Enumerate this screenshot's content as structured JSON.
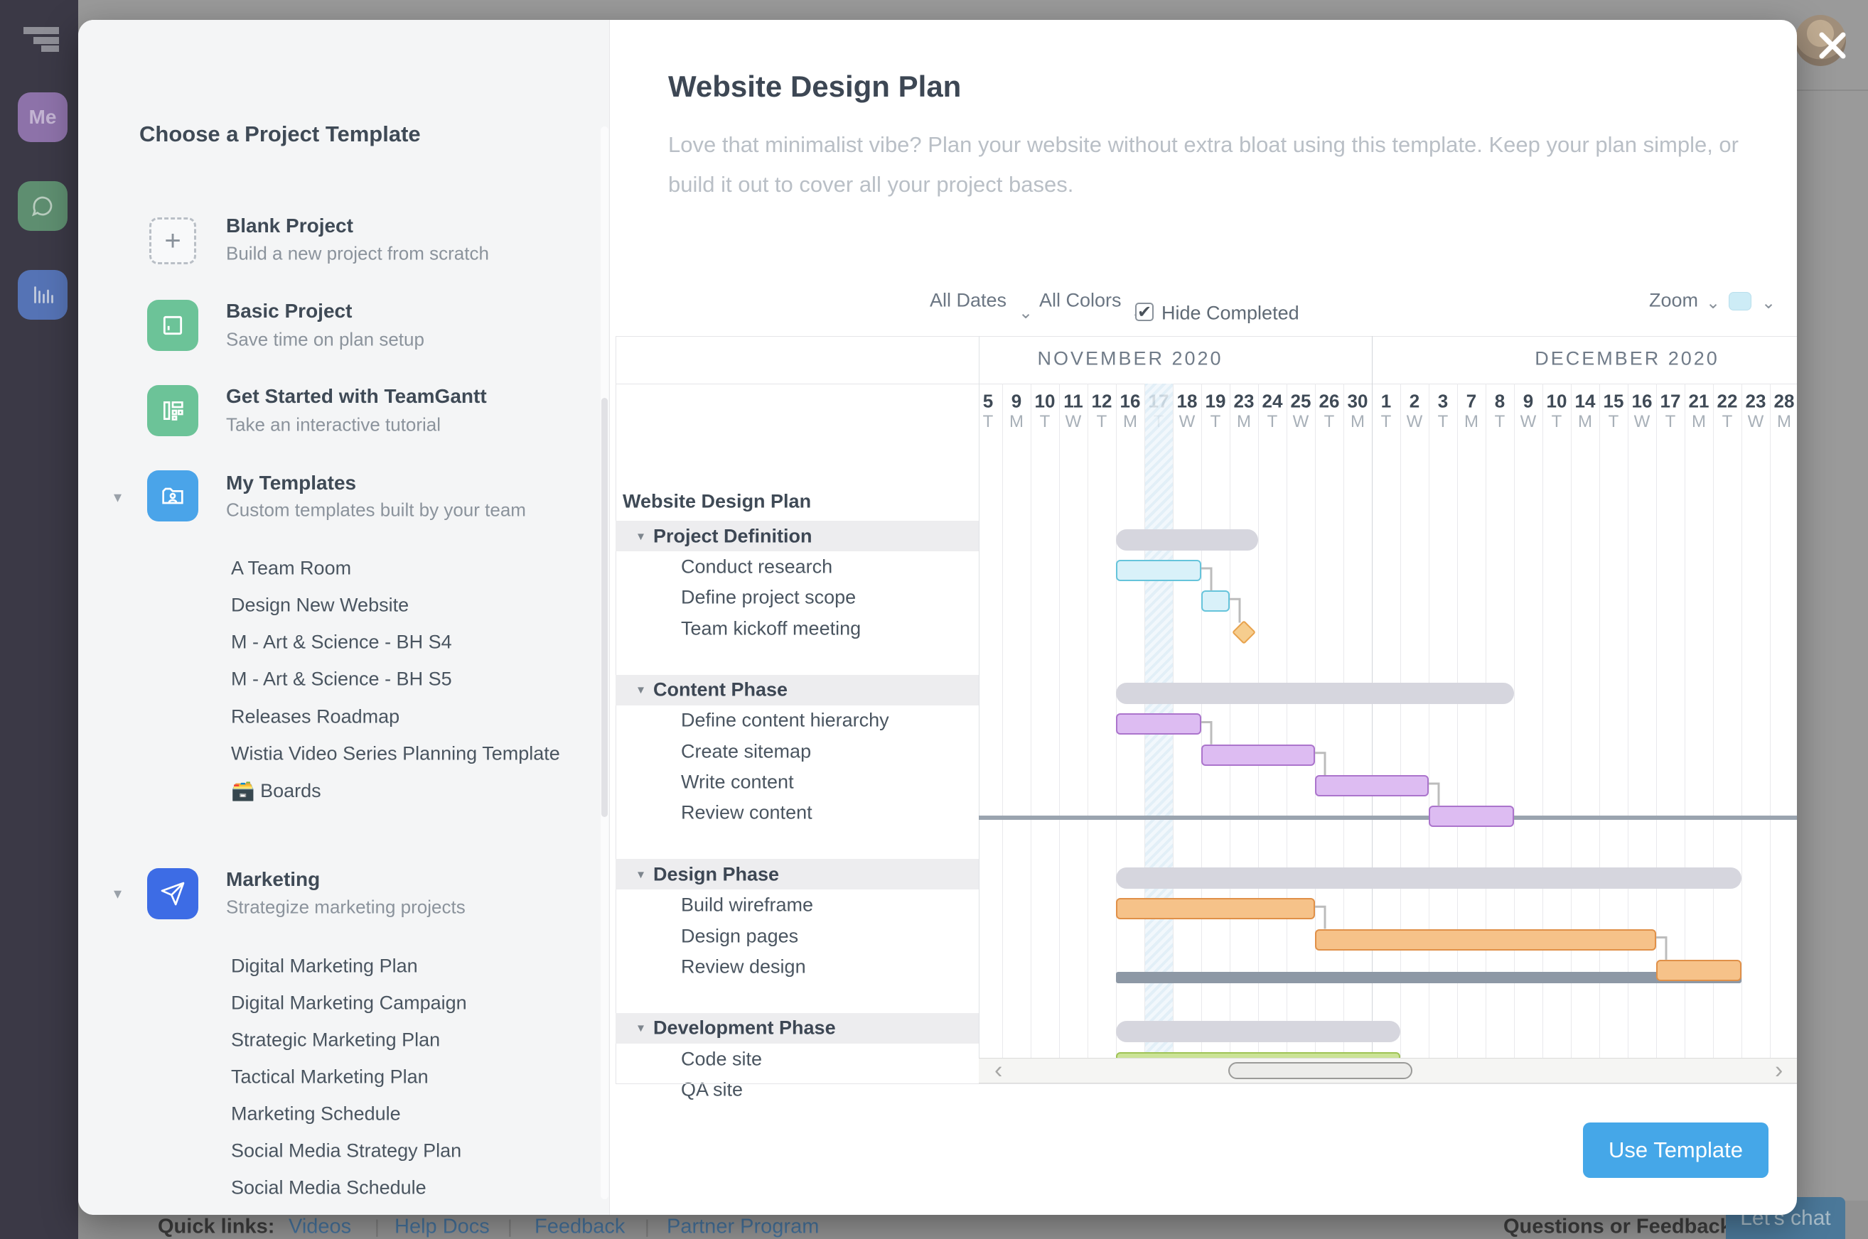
{
  "sidebar": {
    "me_label": "Me",
    "icons": [
      "teamgantt-logo-icon",
      "me-avatar-badge",
      "chat-bubble-icon",
      "bar-chart-icon"
    ],
    "colors": {
      "bg": "#3b3946",
      "me": "#8d72a9",
      "chat": "#5e8e70",
      "charts": "#5573b5"
    }
  },
  "left_panel": {
    "heading": "Choose a Project Template",
    "items": [
      {
        "icon": "blank-project-icon",
        "title": "Blank Project",
        "desc": "Build a new project from scratch"
      },
      {
        "icon": "basic-project-icon",
        "title": "Basic Project",
        "desc": "Save time on plan setup"
      },
      {
        "icon": "tutorial-icon",
        "title": "Get Started with TeamGantt",
        "desc": "Take an interactive tutorial"
      },
      {
        "icon": "my-templates-folder-icon",
        "title": "My Templates",
        "desc": "Custom templates built by your team",
        "children": [
          "A Team Room",
          "Design New Website",
          "M - Art & Science - BH S4",
          "M - Art & Science - BH S5",
          "Releases Roadmap",
          "Wistia Video Series Planning Template",
          "🗃️ Boards"
        ]
      },
      {
        "icon": "marketing-send-icon",
        "title": "Marketing",
        "desc": "Strategize marketing projects",
        "children": [
          "Digital Marketing Plan",
          "Digital Marketing Campaign",
          "Strategic Marketing Plan",
          "Tactical Marketing Plan",
          "Marketing Schedule",
          "Social Media Strategy Plan",
          "Social Media Schedule"
        ]
      }
    ],
    "icon_colors": {
      "green": "#6cc398",
      "light_blue": "#4aa4e9",
      "blue": "#3d6ce5"
    }
  },
  "detail": {
    "title": "Website Design Plan",
    "description": "Love that minimalist vibe? Plan your website without extra bloat using this template. Keep your plan simple, or build it out to cover all your project bases.",
    "toolbar": {
      "all_dates": "All Dates",
      "all_colors": "All Colors",
      "hide_completed": "Hide Completed",
      "hide_completed_checked": true,
      "zoom_label": "Zoom",
      "zoom_swatch_color": "#cdecf6"
    },
    "use_template": "Use Template"
  },
  "gantt": {
    "months": [
      {
        "label": "NOVEMBER 2020",
        "start": 0,
        "end": 13
      },
      {
        "label": "DECEMBER 2020",
        "start": 14,
        "end": 28
      }
    ],
    "days": [
      {
        "n": "5",
        "w": "T"
      },
      {
        "n": "9",
        "w": "M"
      },
      {
        "n": "10",
        "w": "T"
      },
      {
        "n": "11",
        "w": "W"
      },
      {
        "n": "12",
        "w": "T"
      },
      {
        "n": "16",
        "w": "M"
      },
      {
        "n": "17",
        "w": "T"
      },
      {
        "n": "18",
        "w": "W"
      },
      {
        "n": "19",
        "w": "T"
      },
      {
        "n": "23",
        "w": "M"
      },
      {
        "n": "24",
        "w": "T"
      },
      {
        "n": "25",
        "w": "W"
      },
      {
        "n": "26",
        "w": "T"
      },
      {
        "n": "30",
        "w": "M"
      },
      {
        "n": "1",
        "w": "T"
      },
      {
        "n": "2",
        "w": "W"
      },
      {
        "n": "3",
        "w": "T"
      },
      {
        "n": "7",
        "w": "M"
      },
      {
        "n": "8",
        "w": "T"
      },
      {
        "n": "9",
        "w": "W"
      },
      {
        "n": "10",
        "w": "T"
      },
      {
        "n": "14",
        "w": "M"
      },
      {
        "n": "15",
        "w": "T"
      },
      {
        "n": "16",
        "w": "W"
      },
      {
        "n": "17",
        "w": "T"
      },
      {
        "n": "21",
        "w": "M"
      },
      {
        "n": "22",
        "w": "T"
      },
      {
        "n": "23",
        "w": "W"
      },
      {
        "n": "28",
        "w": "M"
      }
    ],
    "today_index": 6,
    "rows": [
      {
        "label": "Website Design Plan",
        "kind": "project"
      },
      {
        "label": "Project Definition",
        "kind": "group"
      },
      {
        "label": "Conduct research",
        "kind": "task"
      },
      {
        "label": "Define project scope",
        "kind": "task"
      },
      {
        "label": "Team kickoff meeting",
        "kind": "task"
      },
      {
        "label": "",
        "kind": "spacer"
      },
      {
        "label": "Content Phase",
        "kind": "group"
      },
      {
        "label": "Define content hierarchy",
        "kind": "task"
      },
      {
        "label": "Create sitemap",
        "kind": "task"
      },
      {
        "label": "Write content",
        "kind": "task"
      },
      {
        "label": "Review content",
        "kind": "task"
      },
      {
        "label": "",
        "kind": "spacer"
      },
      {
        "label": "Design Phase",
        "kind": "group"
      },
      {
        "label": "Build wireframe",
        "kind": "task"
      },
      {
        "label": "Design pages",
        "kind": "task"
      },
      {
        "label": "Review design",
        "kind": "task"
      },
      {
        "label": "",
        "kind": "spacer"
      },
      {
        "label": "Development Phase",
        "kind": "group"
      },
      {
        "label": "Code site",
        "kind": "task"
      },
      {
        "label": "QA site",
        "kind": "task"
      }
    ],
    "bars": [
      {
        "id": "project-baseline",
        "kind": "baseline",
        "row": 0
      },
      {
        "id": "project-summary",
        "kind": "summary",
        "row": 0,
        "start": 5,
        "end": 26
      },
      {
        "id": "group-project-definition",
        "kind": "group",
        "row": 1,
        "start": 5,
        "end": 9
      },
      {
        "id": "conduct-research",
        "kind": "task",
        "color": "blue",
        "row": 2,
        "start": 5,
        "end": 7
      },
      {
        "id": "define-project-scope",
        "kind": "task",
        "color": "blue",
        "row": 3,
        "start": 8,
        "end": 8
      },
      {
        "id": "team-kickoff-meeting",
        "kind": "milestone",
        "color": "orange",
        "row": 4,
        "at": 9
      },
      {
        "id": "group-content-phase",
        "kind": "group",
        "row": 6,
        "start": 5,
        "end": 18
      },
      {
        "id": "define-content-hierarchy",
        "kind": "task",
        "color": "purple",
        "row": 7,
        "start": 5,
        "end": 7
      },
      {
        "id": "create-sitemap",
        "kind": "task",
        "color": "purple",
        "row": 8,
        "start": 8,
        "end": 11
      },
      {
        "id": "write-content",
        "kind": "task",
        "color": "purple",
        "row": 9,
        "start": 12,
        "end": 15
      },
      {
        "id": "review-content",
        "kind": "task",
        "color": "purple",
        "row": 10,
        "start": 16,
        "end": 18
      },
      {
        "id": "group-design-phase",
        "kind": "group",
        "row": 12,
        "start": 5,
        "end": 26
      },
      {
        "id": "build-wireframe",
        "kind": "task",
        "color": "orange",
        "row": 13,
        "start": 5,
        "end": 11
      },
      {
        "id": "design-pages",
        "kind": "task",
        "color": "orange",
        "row": 14,
        "start": 12,
        "end": 23
      },
      {
        "id": "review-design",
        "kind": "task",
        "color": "orange",
        "row": 15,
        "start": 24,
        "end": 26
      },
      {
        "id": "group-development-phase",
        "kind": "group",
        "row": 17,
        "start": 5,
        "end": 14
      },
      {
        "id": "code-site",
        "kind": "task",
        "color": "green",
        "row": 18,
        "start": 5,
        "end": 14
      }
    ],
    "links": [
      [
        "conduct-research",
        "define-project-scope"
      ],
      [
        "define-project-scope",
        "team-kickoff-meeting"
      ],
      [
        "define-content-hierarchy",
        "create-sitemap"
      ],
      [
        "create-sitemap",
        "write-content"
      ],
      [
        "write-content",
        "review-content"
      ],
      [
        "build-wireframe",
        "design-pages"
      ],
      [
        "design-pages",
        "review-design"
      ]
    ],
    "colors": {
      "blue_fill": "#d9f1f9",
      "blue_border": "#66c4db",
      "purple_fill": "#ddbcf2",
      "purple_border": "#ab74cc",
      "orange_fill": "#f6c289",
      "orange_border": "#e09048",
      "green_fill": "#cbe396",
      "green_border": "#9fc356",
      "group_fill": "#d6d6de",
      "summary": "#8d98a5",
      "milestone_fill": "#f6cd8e",
      "milestone_border": "#e8a24c",
      "dependency": "#bcbcbc"
    }
  },
  "footer": {
    "quick_links_label": "Quick links:",
    "links": [
      "Videos",
      "Help Docs",
      "Feedback",
      "Partner Program"
    ],
    "questions": "Questions or Feedback?",
    "lets_chat": "Let's chat"
  }
}
